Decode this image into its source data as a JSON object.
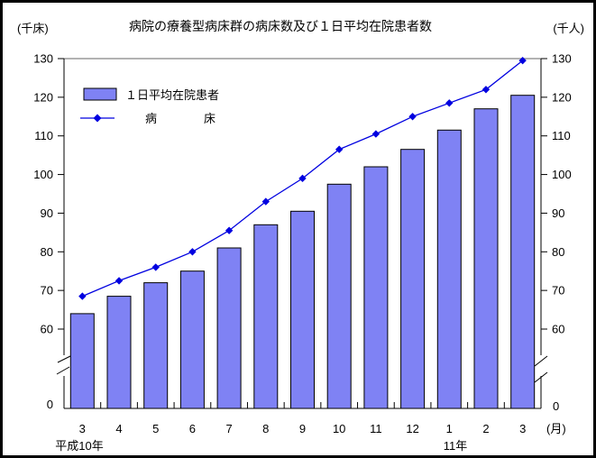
{
  "title": "病院の療養型病床群の病床数及び１日平均在院患者数",
  "axis_units": {
    "left": "(千床)",
    "right": "(千人)"
  },
  "legend": {
    "bar_label": "１日平均在院患者",
    "line_label": "病　　　　床"
  },
  "y_axis": {
    "ticks": [
      130,
      120,
      110,
      100,
      90,
      80,
      70,
      60
    ],
    "zero_label": "0",
    "has_break": true
  },
  "x_axis": {
    "unit_label": "(月)",
    "era_label_1": "平成10年",
    "era_label_2": "11年"
  },
  "colors": {
    "bar_fill": "#7f82f4",
    "bar_stroke": "#000000",
    "line_color": "#0000e0",
    "axis_color": "#000000",
    "frame_top_color": "#999999",
    "text_color": "#000000",
    "bg_color": "#ffffff"
  },
  "chart_data": {
    "type": "bar",
    "title": "病院の療養型病床群の病床数及び１日平均在院患者数",
    "categories": [
      "3",
      "4",
      "5",
      "6",
      "7",
      "8",
      "9",
      "10",
      "11",
      "12",
      "1",
      "2",
      "3"
    ],
    "series": [
      {
        "name": "１日平均在院患者",
        "type": "bar",
        "unit": "千人",
        "values": [
          64,
          68.5,
          72,
          75,
          81,
          87,
          90.5,
          97.5,
          102,
          106.5,
          111.5,
          117,
          120.5
        ]
      },
      {
        "name": "病床",
        "type": "line",
        "unit": "千床",
        "values": [
          68.5,
          72.5,
          76,
          80,
          85.5,
          93,
          99,
          106.5,
          110.5,
          115,
          118.5,
          122,
          129.5
        ]
      }
    ],
    "xlabel": "(月)",
    "ylabel_left": "(千床)",
    "ylabel_right": "(千人)",
    "ylim": [
      60,
      130
    ],
    "y_tick_step": 10,
    "y_axis_break_to_zero": true,
    "grid": false,
    "legend_position": "top-left-inside",
    "x_era_labels": [
      "平成10年",
      "11年"
    ]
  }
}
